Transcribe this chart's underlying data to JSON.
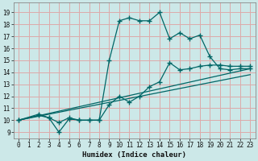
{
  "xlabel": "Humidex (Indice chaleur)",
  "bg_color": "#cce8e8",
  "grid_color": "#ddaaaa",
  "line_color": "#006666",
  "xlim": [
    -0.5,
    23.5
  ],
  "ylim": [
    8.5,
    19.8
  ],
  "xticks": [
    0,
    1,
    2,
    3,
    4,
    5,
    6,
    7,
    8,
    9,
    10,
    11,
    12,
    13,
    14,
    15,
    16,
    17,
    18,
    19,
    20,
    21,
    22,
    23
  ],
  "yticks": [
    9,
    10,
    11,
    12,
    13,
    14,
    15,
    16,
    17,
    18,
    19
  ],
  "line1_x": [
    0,
    2,
    3,
    4,
    5,
    6,
    7,
    8,
    9,
    10,
    11,
    12,
    13,
    14,
    15,
    16,
    17,
    18,
    19,
    20,
    21,
    22,
    23
  ],
  "line1_y": [
    10,
    10.5,
    10.2,
    9.0,
    10.1,
    10.0,
    10.0,
    10.0,
    15.0,
    18.3,
    18.55,
    18.3,
    18.3,
    19.0,
    16.8,
    17.3,
    16.8,
    17.1,
    15.3,
    14.3,
    14.2,
    14.3,
    14.3
  ],
  "line2_x": [
    0,
    2,
    3,
    4,
    5,
    6,
    7,
    8,
    9,
    10,
    11,
    12,
    13,
    14,
    15,
    16,
    17,
    18,
    19,
    20,
    21,
    22,
    23
  ],
  "line2_y": [
    10,
    10.4,
    10.2,
    9.8,
    10.2,
    10.0,
    10.0,
    10.0,
    11.3,
    12.0,
    11.5,
    12.0,
    12.8,
    13.2,
    14.8,
    14.2,
    14.3,
    14.5,
    14.6,
    14.6,
    14.5,
    14.5,
    14.5
  ],
  "line3_x": [
    0,
    23
  ],
  "line3_y": [
    10,
    14.3
  ],
  "line4_x": [
    0,
    23
  ],
  "line4_y": [
    10,
    13.8
  ]
}
